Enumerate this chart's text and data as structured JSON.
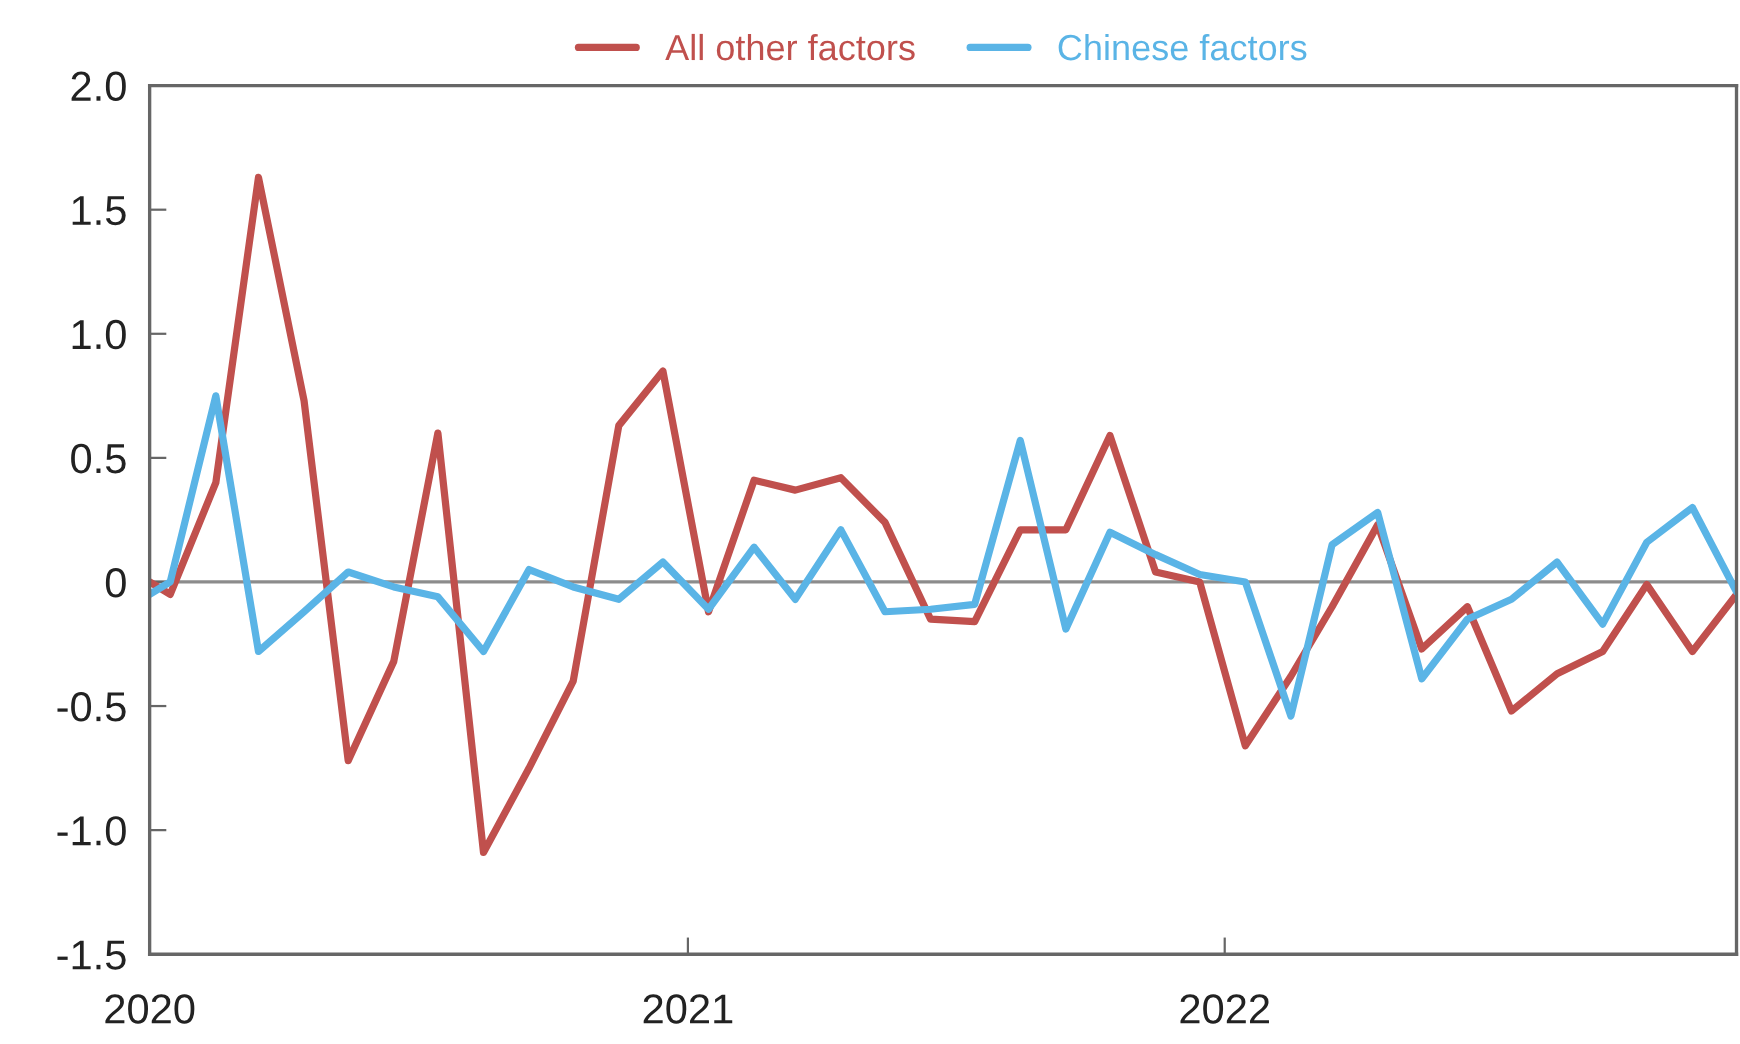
{
  "chart_data": {
    "type": "line",
    "x": [
      "2020-01-01",
      "2020-01-15",
      "2020-02-15",
      "2020-03-15",
      "2020-04-15",
      "2020-05-15",
      "2020-06-15",
      "2020-07-15",
      "2020-08-15",
      "2020-09-15",
      "2020-10-15",
      "2020-11-15",
      "2020-12-15",
      "2021-01-15",
      "2021-02-15",
      "2021-03-15",
      "2021-04-15",
      "2021-05-15",
      "2021-06-15",
      "2021-07-15",
      "2021-08-15",
      "2021-09-15",
      "2021-10-15",
      "2021-11-15",
      "2021-12-15",
      "2022-01-15",
      "2022-02-15",
      "2022-03-15",
      "2022-04-15",
      "2022-05-15",
      "2022-06-15",
      "2022-07-15",
      "2022-08-15",
      "2022-09-15",
      "2022-10-15",
      "2022-11-15",
      "2022-12-15"
    ],
    "series": [
      {
        "name": "All other factors",
        "color": "#c0504d",
        "values": [
          0,
          -0.05,
          0.4,
          1.63,
          0.73,
          -0.72,
          -0.32,
          0.6,
          -1.09,
          -0.75,
          -0.4,
          0.63,
          0.85,
          -0.12,
          0.41,
          0.37,
          0.42,
          0.24,
          -0.15,
          -0.16,
          0.21,
          0.21,
          0.59,
          0.04,
          0.0,
          -0.66,
          -0.38,
          -0.1,
          0.23,
          -0.27,
          -0.1,
          -0.52,
          -0.37,
          -0.28,
          -0.01,
          -0.28,
          -0.05
        ]
      },
      {
        "name": "Chinese factors",
        "color": "#5ab4e6",
        "values": [
          -0.05,
          0.0,
          0.75,
          -0.28,
          -0.12,
          0.04,
          -0.02,
          -0.06,
          -0.28,
          0.05,
          -0.02,
          -0.07,
          0.08,
          -0.11,
          0.14,
          -0.07,
          0.21,
          -0.12,
          -0.11,
          -0.09,
          0.57,
          -0.19,
          0.2,
          0.11,
          0.03,
          0.0,
          -0.54,
          0.15,
          0.28,
          -0.39,
          -0.15,
          -0.07,
          0.08,
          -0.17,
          0.16,
          0.3,
          -0.04
        ]
      }
    ],
    "xlim": [
      "2020-01-01",
      "2022-12-15"
    ],
    "xticks": [
      "2020",
      "2021",
      "2022"
    ],
    "ylim": [
      -1.5,
      2.0
    ],
    "yticks": [
      {
        "value": -1.5,
        "label": "-1.5"
      },
      {
        "value": -1.0,
        "label": "-1.0"
      },
      {
        "value": -0.5,
        "label": "-0.5"
      },
      0,
      {
        "value": 0.5,
        "label": "0.5"
      },
      {
        "value": 1.0,
        "label": "1.0"
      },
      {
        "value": 1.5,
        "label": "1.5"
      },
      {
        "value": 2.0,
        "label": "2.0"
      }
    ],
    "ref_lines": [
      {
        "axis": "y",
        "value": 0,
        "color": "#8c8c8c"
      }
    ],
    "legend": "top",
    "grid": false,
    "line_style": "solid",
    "marker": "none"
  }
}
